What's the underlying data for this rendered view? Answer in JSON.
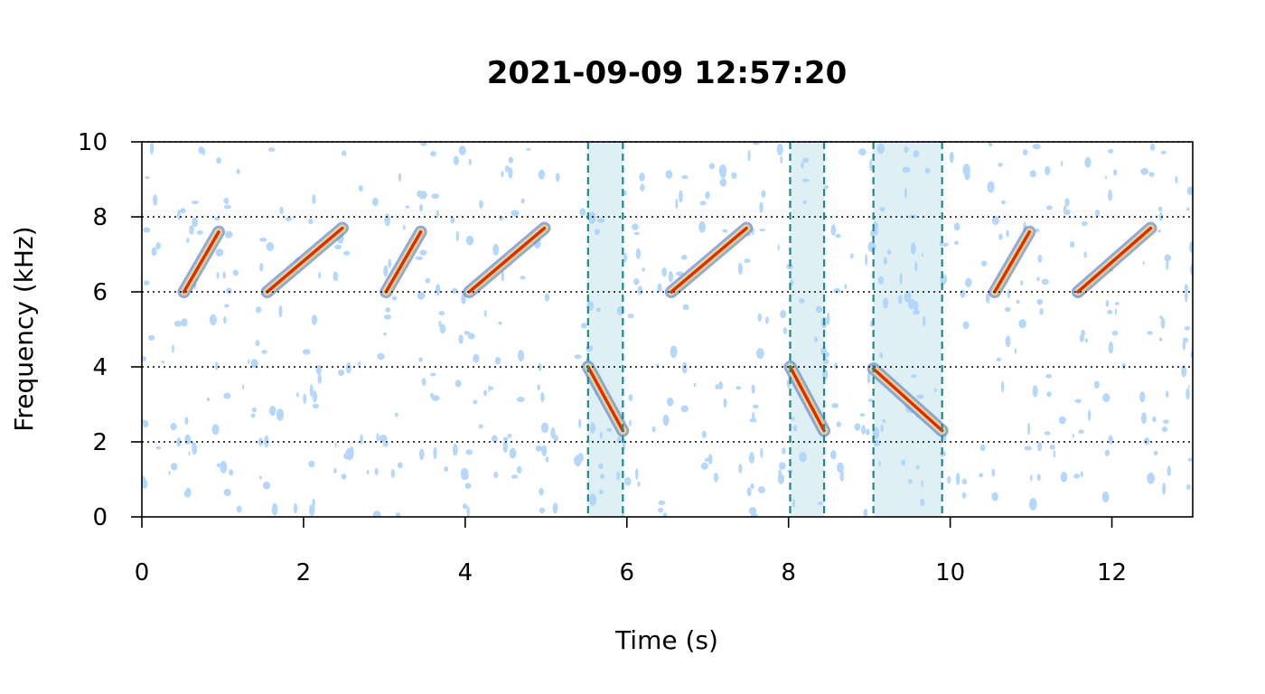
{
  "chart_data": {
    "type": "spectrogram",
    "title": "2021-09-09 12:57:20",
    "xlabel": "Time (s)",
    "ylabel": "Frequency (kHz)",
    "xlim": [
      0,
      13
    ],
    "ylim": [
      0,
      10
    ],
    "x_ticks": [
      0,
      2,
      4,
      6,
      8,
      10,
      12
    ],
    "y_ticks": [
      0,
      2,
      4,
      6,
      8,
      10
    ],
    "hlines": [
      2,
      4,
      6,
      8,
      10
    ],
    "highlight_intervals": [
      [
        5.52,
        5.95
      ],
      [
        8.02,
        8.44
      ],
      [
        9.05,
        9.9
      ]
    ],
    "calls": [
      {
        "t0": 0.52,
        "f0": 6.0,
        "t1": 0.95,
        "f1": 7.6
      },
      {
        "t0": 1.55,
        "f0": 6.0,
        "t1": 2.48,
        "f1": 7.7
      },
      {
        "t0": 3.02,
        "f0": 6.0,
        "t1": 3.45,
        "f1": 7.6
      },
      {
        "t0": 4.05,
        "f0": 6.0,
        "t1": 4.98,
        "f1": 7.7
      },
      {
        "t0": 5.52,
        "f0": 4.0,
        "t1": 5.95,
        "f1": 2.3
      },
      {
        "t0": 6.55,
        "f0": 6.0,
        "t1": 7.48,
        "f1": 7.7
      },
      {
        "t0": 8.02,
        "f0": 4.0,
        "t1": 8.44,
        "f1": 2.3
      },
      {
        "t0": 9.05,
        "f0": 3.95,
        "t1": 9.9,
        "f1": 2.3
      },
      {
        "t0": 10.55,
        "f0": 6.0,
        "t1": 10.98,
        "f1": 7.6
      },
      {
        "t0": 11.58,
        "f0": 6.0,
        "t1": 12.48,
        "f1": 7.7
      }
    ],
    "colors": {
      "highlight_fill": "#dff0f5",
      "highlight_line": "#1a8a8a",
      "noise": "#a9d2fa",
      "outer": "#6e85e0",
      "mid": "#f4e16a",
      "core": "#e8231b"
    }
  }
}
